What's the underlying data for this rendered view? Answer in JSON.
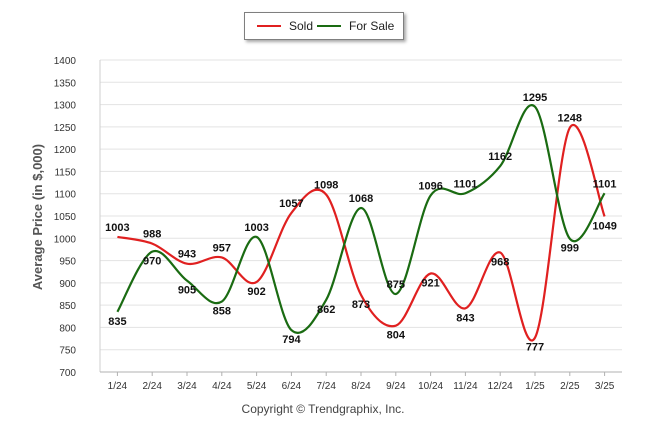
{
  "chart_data": {
    "type": "line",
    "categories": [
      "1/24",
      "2/24",
      "3/24",
      "4/24",
      "5/24",
      "6/24",
      "7/24",
      "8/24",
      "9/24",
      "10/24",
      "11/24",
      "12/24",
      "1/25",
      "2/25",
      "3/25"
    ],
    "series": [
      {
        "name": "Sold",
        "color": "#e02020",
        "values": [
          1003,
          988,
          943,
          957,
          902,
          1057,
          1098,
          873,
          804,
          921,
          843,
          968,
          777,
          1248,
          1049
        ]
      },
      {
        "name": "For Sale",
        "color": "#1a6b12",
        "values": [
          835,
          970,
          905,
          858,
          1003,
          794,
          862,
          1068,
          875,
          1096,
          1101,
          1162,
          1295,
          999,
          1101
        ]
      }
    ],
    "ylabel": "Average Price (in $,000)",
    "xlabel": "",
    "ylim": [
      700,
      1400
    ],
    "yticks": [
      700,
      750,
      800,
      850,
      900,
      950,
      1000,
      1050,
      1100,
      1150,
      1200,
      1250,
      1300,
      1350,
      1400
    ],
    "grid": true,
    "legend": "top-center"
  },
  "footer": {
    "copyright": "Copyright © Trendgraphix, Inc."
  }
}
